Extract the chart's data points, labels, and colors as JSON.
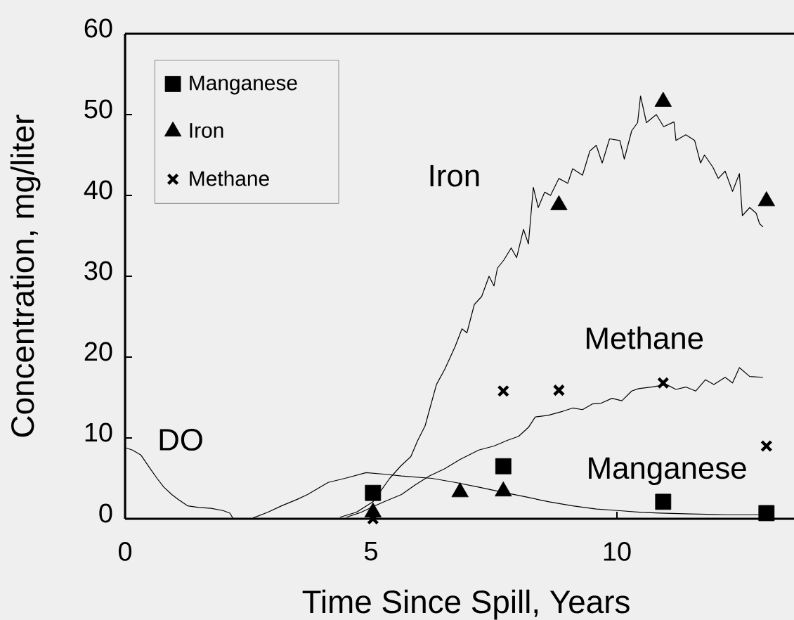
{
  "chart_data": {
    "type": "line",
    "xlabel": "Time Since Spill, Years",
    "ylabel": "Concentration, mg/liter",
    "xlim": [
      0,
      13.6
    ],
    "ylim": [
      0,
      60
    ],
    "xticks": [
      0,
      5,
      10
    ],
    "yticks": [
      0,
      10,
      20,
      30,
      40,
      50,
      60
    ],
    "legend": "top left",
    "series": [
      {
        "name": "DO",
        "color": "#000000",
        "x": [
          0,
          0.15,
          0.32,
          0.51,
          0.65,
          0.79,
          0.95,
          1.08,
          1.27,
          1.5,
          1.75,
          2.0,
          2.13,
          2.2,
          2.5
        ],
        "values": [
          8.8,
          8.5,
          7.9,
          6.2,
          5.0,
          3.9,
          3.0,
          2.4,
          1.6,
          1.4,
          1.3,
          1.0,
          0.7,
          0,
          0
        ]
      },
      {
        "name": "Manganese",
        "color": "#000000",
        "x": [
          2.6,
          2.9,
          3.18,
          3.5,
          3.71,
          4.13,
          4.47,
          4.9,
          5.3,
          5.62,
          6.24,
          6.71,
          7.2,
          7.67,
          8.15,
          8.62,
          9.1,
          9.58,
          10.06,
          10.5,
          10.87,
          11.5,
          12.2,
          13.07
        ],
        "values": [
          0.1,
          0.8,
          1.6,
          2.4,
          3.0,
          4.5,
          5.0,
          5.7,
          5.5,
          5.3,
          5.0,
          4.5,
          3.9,
          3.3,
          2.7,
          2.1,
          1.6,
          1.2,
          1.0,
          0.8,
          0.7,
          0.6,
          0.5,
          0.5
        ]
      },
      {
        "name": "Iron",
        "color": "#000000",
        "x": [
          4.37,
          4.7,
          5.04,
          5.38,
          5.6,
          5.81,
          5.95,
          6.1,
          6.19,
          6.33,
          6.5,
          6.71,
          6.85,
          6.95,
          7.1,
          7.25,
          7.4,
          7.5,
          7.57,
          7.7,
          7.85,
          7.96,
          8.1,
          8.2,
          8.3,
          8.4,
          8.53,
          8.65,
          8.82,
          9.0,
          9.1,
          9.3,
          9.45,
          9.58,
          9.7,
          9.85,
          10.06,
          10.15,
          10.3,
          10.42,
          10.48,
          10.6,
          10.8,
          10.95,
          11.16,
          11.2,
          11.4,
          11.58,
          11.7,
          11.78,
          11.95,
          12.06,
          12.2,
          12.35,
          12.49,
          12.55,
          12.7,
          12.83,
          12.9,
          12.97
        ],
        "values": [
          0.2,
          0.8,
          2.1,
          5.0,
          6.5,
          7.7,
          9.7,
          11.5,
          13.5,
          16.6,
          18.5,
          21.3,
          23.5,
          23.0,
          26.5,
          27.5,
          30.0,
          28.8,
          31.0,
          32.0,
          33.5,
          32.3,
          35.8,
          34.0,
          41.0,
          38.5,
          40.4,
          40.0,
          42.1,
          41.5,
          43.3,
          42.5,
          45.5,
          46.2,
          44.0,
          47.0,
          46.8,
          44.5,
          48.0,
          49.0,
          52.3,
          49.0,
          50.0,
          48.5,
          49.1,
          46.8,
          47.5,
          46.8,
          44.0,
          45.0,
          43.5,
          42.1,
          43.0,
          40.5,
          42.7,
          37.5,
          38.5,
          37.8,
          36.5,
          36.1
        ]
      },
      {
        "name": "Methane",
        "color": "#000000",
        "x": [
          4.5,
          4.8,
          5.04,
          5.3,
          5.62,
          5.9,
          6.19,
          6.5,
          6.8,
          7.19,
          7.5,
          7.77,
          8.0,
          8.2,
          8.34,
          8.6,
          8.9,
          9.1,
          9.3,
          9.5,
          9.68,
          9.9,
          10.1,
          10.3,
          10.44,
          10.7,
          11.01,
          11.2,
          11.4,
          11.6,
          11.8,
          11.97,
          12.2,
          12.35,
          12.49,
          12.7,
          12.97
        ],
        "values": [
          0.2,
          0.8,
          1.5,
          2.2,
          3.0,
          4.2,
          5.3,
          6.2,
          7.3,
          8.5,
          9.0,
          9.7,
          10.2,
          11.3,
          12.6,
          12.8,
          13.3,
          13.7,
          13.5,
          14.2,
          14.3,
          14.9,
          14.6,
          15.8,
          16.1,
          16.3,
          16.6,
          16.0,
          16.3,
          15.8,
          17.2,
          16.6,
          17.5,
          16.8,
          18.7,
          17.6,
          17.5
        ]
      },
      {
        "type": "scatter",
        "name": "Manganese",
        "color": "#000000",
        "marker": "square",
        "x": [
          5.04,
          7.69,
          10.94,
          13.04
        ],
        "values": [
          3.2,
          6.5,
          2.1,
          0.7
        ]
      },
      {
        "type": "scatter",
        "name": "Iron",
        "color": "#000000",
        "marker": "triangle",
        "x": [
          5.04,
          6.81,
          7.69,
          8.82,
          10.94,
          13.04
        ],
        "values": [
          0.8,
          3.3,
          3.4,
          38.8,
          51.6,
          39.3
        ]
      },
      {
        "type": "scatter",
        "name": "Methane",
        "color": "#000000",
        "marker": "cross",
        "x": [
          5.04,
          7.69,
          8.82,
          10.94,
          13.04
        ],
        "values": [
          0.0,
          15.8,
          15.9,
          16.8,
          9.0
        ]
      }
    ]
  }
}
